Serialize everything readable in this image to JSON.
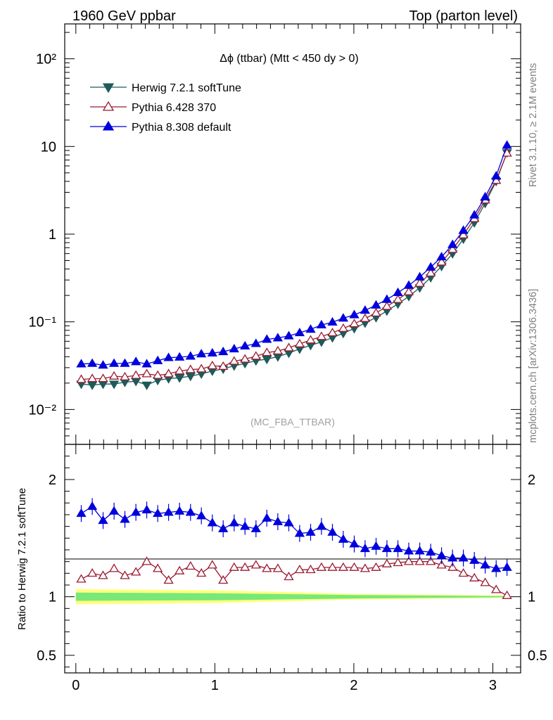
{
  "header": {
    "left": "1960 GeV ppbar",
    "right": "Top (parton level)"
  },
  "side_text": {
    "rivet": "Rivet 3.1.10, ≥ 2.1M events",
    "mcplots": "mcplots.cern.ch [arXiv:1306.3436]"
  },
  "chart_data": [
    {
      "type": "line",
      "panel": "main",
      "title": "Δϕ (ttbar) (Mtt < 450 dy > 0)",
      "watermark": "(MC_FBA_TTBAR)",
      "y_scale": "log",
      "xlim": [
        -0.08,
        3.2
      ],
      "ylim": [
        0.004,
        250
      ],
      "y_ticks": [
        0.01,
        0.1,
        1,
        10,
        100
      ],
      "y_tick_labels": [
        "10⁻²",
        "10⁻¹",
        "1",
        "10",
        "10²"
      ],
      "legend_position": "top-left",
      "x": [
        0.039,
        0.118,
        0.196,
        0.275,
        0.353,
        0.432,
        0.51,
        0.589,
        0.667,
        0.746,
        0.825,
        0.903,
        0.982,
        1.06,
        1.139,
        1.217,
        1.296,
        1.374,
        1.453,
        1.532,
        1.61,
        1.689,
        1.767,
        1.846,
        1.924,
        2.003,
        2.081,
        2.16,
        2.238,
        2.317,
        2.395,
        2.474,
        2.553,
        2.631,
        2.71,
        2.788,
        2.867,
        2.945,
        3.024,
        3.102
      ],
      "series": [
        {
          "name": "Herwig 7.2.1 softTune",
          "color": "#1e5a5a",
          "marker": "triangle-down-filled",
          "values": [
            0.0195,
            0.019,
            0.0195,
            0.0195,
            0.0205,
            0.021,
            0.019,
            0.0215,
            0.0225,
            0.023,
            0.024,
            0.0255,
            0.0275,
            0.029,
            0.0315,
            0.0335,
            0.036,
            0.0375,
            0.04,
            0.044,
            0.049,
            0.054,
            0.059,
            0.066,
            0.074,
            0.084,
            0.097,
            0.112,
            0.133,
            0.16,
            0.195,
            0.245,
            0.32,
            0.43,
            0.6,
            0.88,
            1.35,
            2.25,
            4.0,
            8.5
          ]
        },
        {
          "name": "Pythia 6.428 370",
          "color": "#9b1b30",
          "marker": "triangle-up-open",
          "values": [
            0.022,
            0.0225,
            0.0225,
            0.024,
            0.0235,
            0.0245,
            0.0255,
            0.0245,
            0.0255,
            0.0275,
            0.0285,
            0.029,
            0.0315,
            0.031,
            0.0355,
            0.0375,
            0.0405,
            0.0445,
            0.0465,
            0.0505,
            0.056,
            0.062,
            0.068,
            0.075,
            0.084,
            0.095,
            0.109,
            0.126,
            0.15,
            0.18,
            0.22,
            0.275,
            0.36,
            0.48,
            0.67,
            0.98,
            1.5,
            2.45,
            4.1,
            8.4
          ]
        },
        {
          "name": "Pythia 8.308 default",
          "color": "#0000dd",
          "marker": "triangle-up-filled",
          "values": [
            0.033,
            0.0335,
            0.032,
            0.0335,
            0.0335,
            0.035,
            0.033,
            0.036,
            0.039,
            0.0395,
            0.0405,
            0.043,
            0.044,
            0.0455,
            0.049,
            0.053,
            0.0565,
            0.063,
            0.0655,
            0.069,
            0.075,
            0.082,
            0.092,
            0.099,
            0.11,
            0.12,
            0.135,
            0.155,
            0.18,
            0.215,
            0.26,
            0.325,
            0.42,
            0.55,
            0.76,
            1.1,
            1.65,
            2.65,
            4.6,
            10.3
          ]
        }
      ]
    },
    {
      "type": "line",
      "panel": "ratio",
      "ylabel": "Ratio to Herwig 7.2.1 softTune",
      "xlim": [
        -0.08,
        3.2
      ],
      "ylim": [
        0.35,
        2.3
      ],
      "x_ticks": [
        0,
        1,
        2,
        3
      ],
      "y_ticks": [
        0.5,
        1,
        2
      ],
      "y_tick_labels": [
        "0.5",
        "1",
        "2"
      ],
      "x": [
        0.039,
        0.118,
        0.196,
        0.275,
        0.353,
        0.432,
        0.51,
        0.589,
        0.667,
        0.746,
        0.825,
        0.903,
        0.982,
        1.06,
        1.139,
        1.217,
        1.296,
        1.374,
        1.453,
        1.532,
        1.61,
        1.689,
        1.767,
        1.846,
        1.924,
        2.003,
        2.081,
        2.16,
        2.238,
        2.317,
        2.395,
        2.474,
        2.553,
        2.631,
        2.71,
        2.788,
        2.867,
        2.945,
        3.024,
        3.102
      ],
      "reference_band": {
        "x": [
          0.0,
          1.0,
          2.0,
          3.1
        ],
        "inner_halfwidth": [
          0.035,
          0.03,
          0.015,
          0.005
        ],
        "outer_halfwidth": [
          0.065,
          0.055,
          0.025,
          0.01
        ]
      },
      "series": [
        {
          "name": "Pythia 6.428 370",
          "color": "#9b1b30",
          "values": [
            1.15,
            1.2,
            1.18,
            1.24,
            1.18,
            1.21,
            1.3,
            1.24,
            1.14,
            1.22,
            1.26,
            1.2,
            1.27,
            1.14,
            1.25,
            1.25,
            1.27,
            1.24,
            1.24,
            1.17,
            1.23,
            1.23,
            1.25,
            1.25,
            1.25,
            1.25,
            1.24,
            1.25,
            1.28,
            1.29,
            1.3,
            1.3,
            1.3,
            1.27,
            1.25,
            1.2,
            1.16,
            1.12,
            1.06,
            1.01
          ]
        },
        {
          "name": "Pythia 8.308 default",
          "color": "#0000dd",
          "values": [
            1.71,
            1.77,
            1.65,
            1.73,
            1.66,
            1.72,
            1.74,
            1.71,
            1.72,
            1.73,
            1.72,
            1.69,
            1.63,
            1.58,
            1.63,
            1.6,
            1.58,
            1.67,
            1.64,
            1.63,
            1.54,
            1.55,
            1.6,
            1.55,
            1.49,
            1.45,
            1.41,
            1.43,
            1.41,
            1.41,
            1.39,
            1.39,
            1.38,
            1.35,
            1.33,
            1.33,
            1.31,
            1.27,
            1.24,
            1.25
          ]
        }
      ]
    }
  ]
}
